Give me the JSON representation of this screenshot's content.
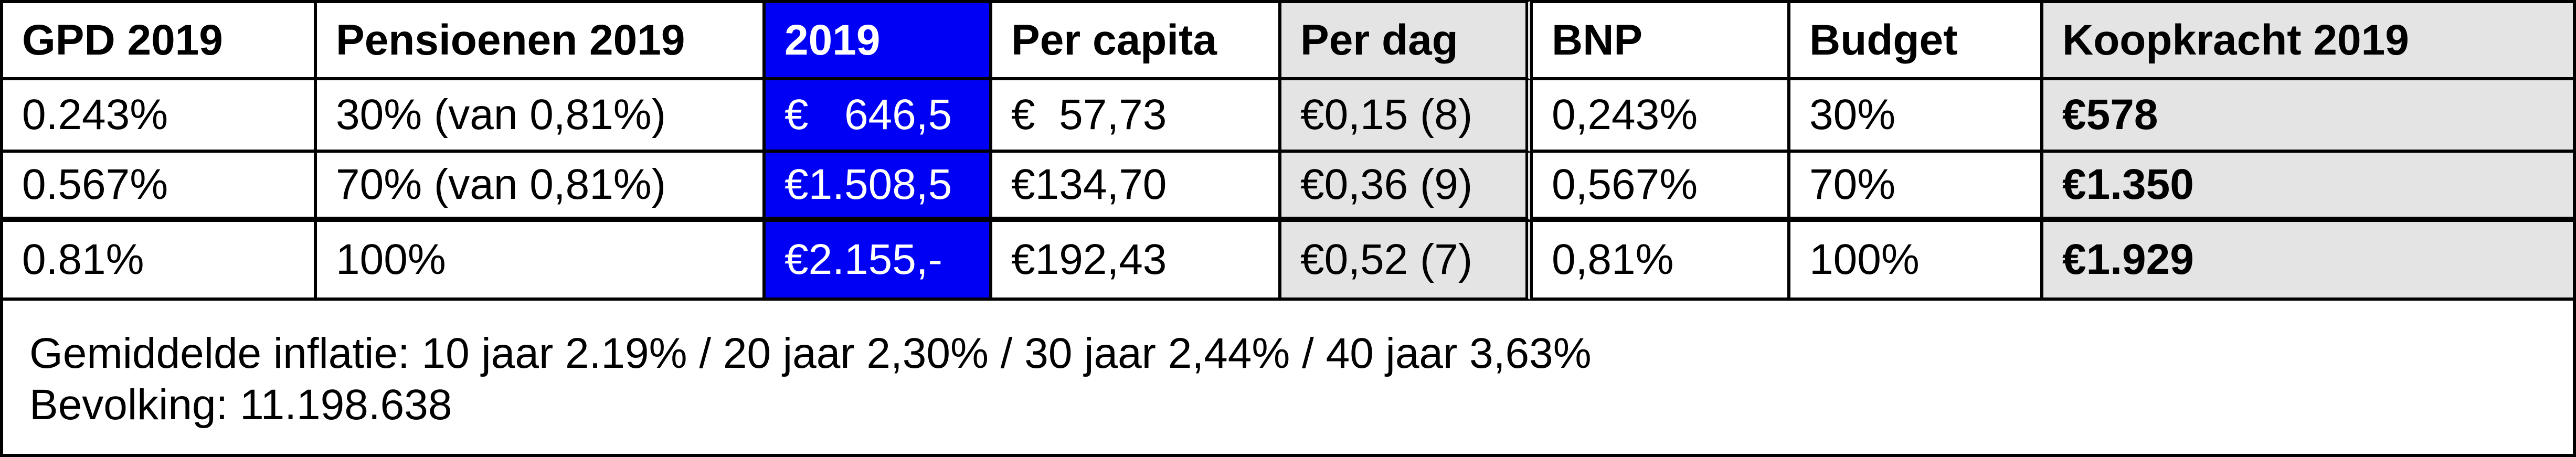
{
  "table": {
    "header": [
      "GPD 2019",
      "Pensioenen 2019",
      "2019",
      "Per capita",
      "Per dag",
      "BNP",
      "Budget",
      "Koopkracht 2019"
    ],
    "rows": [
      [
        "0.243%",
        "30% (van 0,81%)",
        "€   646,5",
        "€  57,73",
        "€0,15 (8)",
        "0,243%",
        "30%",
        "€578"
      ],
      [
        "0.567%",
        "70% (van 0,81%)",
        "€1.508,5",
        "€134,70",
        "€0,36 (9)",
        "0,567%",
        "70%",
        "€1.350"
      ],
      [
        "0.81%",
        "100%",
        "€2.155,-",
        "€192,43",
        "€0,52 (7)",
        "0,81%",
        "100%",
        "€1.929"
      ]
    ]
  },
  "footer": {
    "lines": [
      "Gemiddelde inflatie: 10 jaar 2.19% / 20 jaar 2,30% / 30 jaar 2,44% / 40 jaar 3,63%",
      "Bevolking: 11.198.638"
    ]
  }
}
